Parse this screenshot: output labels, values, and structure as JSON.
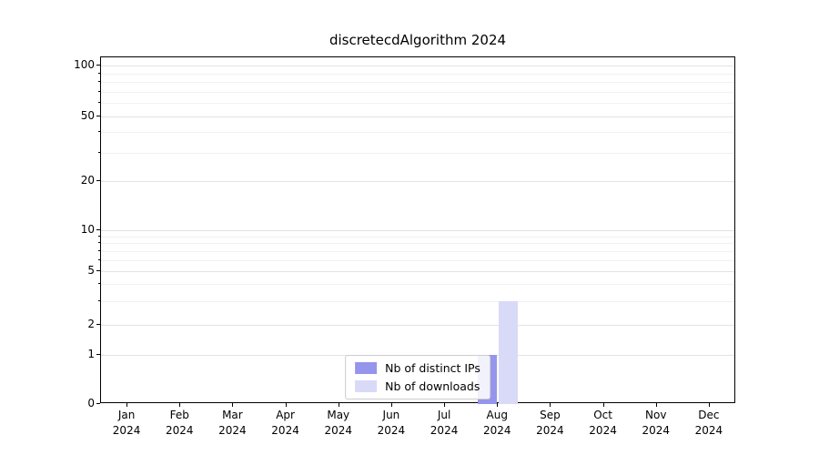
{
  "title": "discretecdAlgorithm 2024",
  "chart_data": {
    "type": "bar",
    "title": "discretecdAlgorithm 2024",
    "yscale": "symlog",
    "ylim": [
      0,
      115
    ],
    "grid": "horizontal",
    "legend_position": "lower center",
    "x_tick_months": [
      "Jan",
      "Feb",
      "Mar",
      "Apr",
      "May",
      "Jun",
      "Jul",
      "Aug",
      "Sep",
      "Oct",
      "Nov",
      "Dec"
    ],
    "x_tick_year": "2024",
    "y_ticks": [
      0,
      1,
      2,
      5,
      10,
      20,
      50,
      100
    ],
    "y_minor_ticks": [
      3,
      4,
      6,
      7,
      8,
      9,
      30,
      40,
      60,
      70,
      80,
      90
    ],
    "series": [
      {
        "name": "Nb of distinct IPs",
        "color": "#9595ec",
        "values": [
          0,
          0,
          0,
          0,
          0,
          0,
          0,
          1,
          0,
          0,
          0,
          0
        ]
      },
      {
        "name": "Nb of downloads",
        "color": "#d9d9f8",
        "values": [
          0,
          0,
          0,
          0,
          0,
          0,
          0,
          3,
          0,
          0,
          0,
          0
        ]
      }
    ]
  }
}
